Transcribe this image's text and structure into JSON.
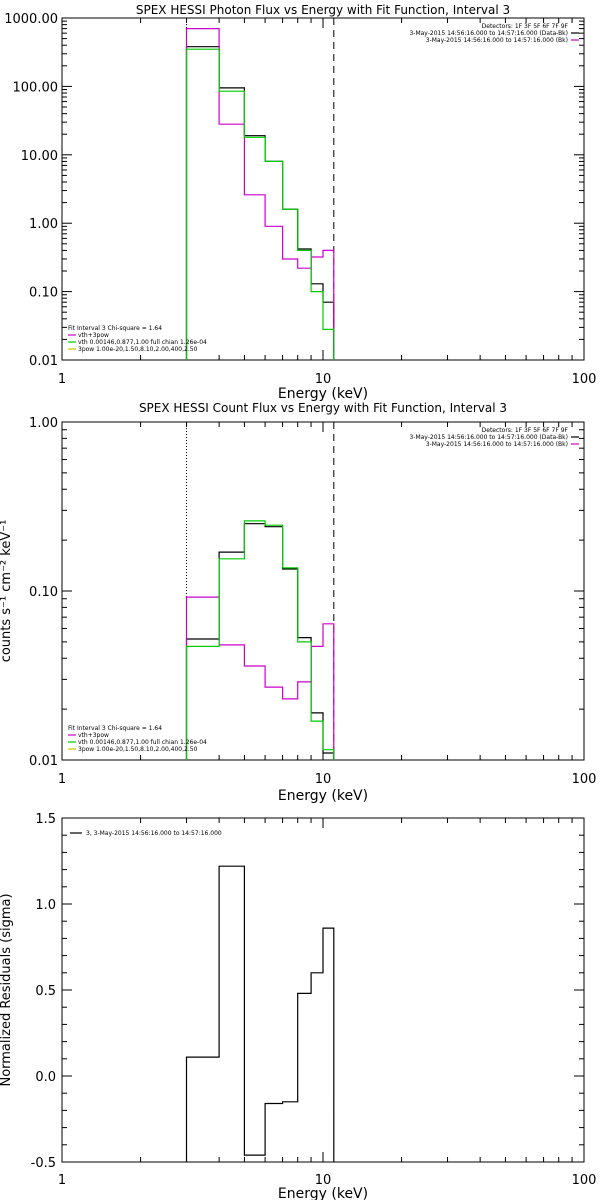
{
  "chart_data": [
    {
      "type": "line",
      "title": "SPEX HESSI Photon Flux vs Energy with Fit Function, Interval 3",
      "xlabel": "Energy (keV)",
      "ylabel": "",
      "xscale": "log",
      "yscale": "log",
      "xlim": [
        1,
        100
      ],
      "ylim": [
        0.01,
        1000
      ],
      "xticks": [
        "1",
        "10",
        "100"
      ],
      "yticks": [
        "1000.00",
        "100.00",
        "10.00",
        "1.00",
        "0.10",
        "0.01"
      ],
      "legend_top_right": [
        {
          "text": "Detectors: 1F 3F 5F 6F 7F 9F",
          "color": ""
        },
        {
          "text": "3-May-2015 14:56:16.000 to 14:57:16.000 (Data-Bk)",
          "color": "#000000"
        },
        {
          "text": "3-May-2015 14:56:16.000 to 14:57:16.000 (Bk)",
          "color": "#cc00cc"
        }
      ],
      "legend_bottom_left": [
        {
          "text": "Fit Interval 3   Chi-square = 1.64",
          "color": ""
        },
        {
          "text": "vth+3pow",
          "color": "#cc00cc"
        },
        {
          "text": "vth 0.00146,0.877,1.00  full chian 1.26e-04",
          "color": "#00cc00"
        },
        {
          "text": "3pow 1.00e-20,1.50,8.10,2.00,400,2.50",
          "color": "#cccc00"
        }
      ],
      "vlines": [
        {
          "x": 3,
          "style": "dotted"
        },
        {
          "x": 11,
          "style": "dashed"
        }
      ],
      "bin_edges": [
        3,
        4,
        5,
        6,
        7,
        8,
        9,
        10,
        11
      ],
      "series": [
        {
          "label": "Data-Bk",
          "color": "#000000",
          "values": [
            380,
            95,
            19,
            8,
            1.6,
            0.42,
            0.13,
            0.07
          ]
        },
        {
          "label": "Bk",
          "color": "#cc00cc",
          "values": [
            700,
            28,
            2.6,
            0.9,
            0.3,
            0.22,
            0.32,
            0.4
          ]
        },
        {
          "label": "Fit",
          "color": "#00cc00",
          "values": [
            350,
            85,
            18,
            8,
            1.6,
            0.4,
            0.1,
            0.028
          ]
        }
      ]
    },
    {
      "type": "line",
      "title": "SPEX HESSI Count Flux vs Energy with Fit Function, Interval 3",
      "xlabel": "Energy (keV)",
      "ylabel": "counts s⁻¹ cm⁻² keV⁻¹",
      "xscale": "log",
      "yscale": "log",
      "xlim": [
        1,
        100
      ],
      "ylim": [
        0.01,
        1
      ],
      "xticks": [
        "1",
        "10",
        "100"
      ],
      "yticks": [
        "1.00",
        "0.10",
        "0.01"
      ],
      "legend_top_right": [
        {
          "text": "Detectors: 1F 3F 5F 6F 7F 9F",
          "color": ""
        },
        {
          "text": "3-May-2015 14:56:16.000 to 14:57:16.000 (Data-Bk)",
          "color": "#000000"
        },
        {
          "text": "3-May-2015 14:56:16.000 to 14:57:16.000 (Bk)",
          "color": "#cc00cc"
        }
      ],
      "legend_bottom_left": [
        {
          "text": "Fit Interval 3   Chi-square = 1.64",
          "color": ""
        },
        {
          "text": "vth+3pow",
          "color": "#cc00cc"
        },
        {
          "text": "vth 0.00146,0.877,1.00  full chian 1.26e-04",
          "color": "#00cc00"
        },
        {
          "text": "3pow 1.00e-20,1.50,8.10,2.00,400,2.50",
          "color": "#cccc00"
        }
      ],
      "vlines": [
        {
          "x": 3,
          "style": "dotted"
        },
        {
          "x": 11,
          "style": "dashed"
        }
      ],
      "bin_edges": [
        3,
        4,
        5,
        6,
        7,
        8,
        9,
        10,
        11
      ],
      "series": [
        {
          "label": "Data-Bk",
          "color": "#000000",
          "values": [
            0.052,
            0.17,
            0.25,
            0.24,
            0.135,
            0.053,
            0.019,
            0.011
          ]
        },
        {
          "label": "Bk",
          "color": "#cc00cc",
          "values": [
            0.092,
            0.048,
            0.036,
            0.027,
            0.023,
            0.029,
            0.047,
            0.064
          ]
        },
        {
          "label": "Fit",
          "color": "#00cc00",
          "values": [
            0.047,
            0.155,
            0.26,
            0.245,
            0.137,
            0.05,
            0.017,
            0.0115
          ]
        }
      ]
    },
    {
      "type": "line",
      "title": "",
      "xlabel": "Energy (keV)",
      "ylabel": "Normalized Residuals (sigma)",
      "xscale": "log",
      "yscale": "linear",
      "xlim": [
        1,
        100
      ],
      "ylim": [
        -0.5,
        1.5
      ],
      "xticks": [
        "1",
        "10",
        "100"
      ],
      "yticks": [
        "1.5",
        "1.0",
        "0.5",
        "0.0",
        "-0.5"
      ],
      "legend_top_left": [
        {
          "text": "3, 3-May-2015 14:56:16.000 to 14:57:16.000",
          "color": "#000000"
        }
      ],
      "legend_top_right": [],
      "legend_bottom_left": [],
      "vlines": [],
      "bin_edges": [
        3,
        4,
        5,
        6,
        7,
        8,
        9,
        10,
        11
      ],
      "series": [
        {
          "label": "Residuals",
          "color": "#000000",
          "values": [
            0.11,
            1.22,
            -0.46,
            -0.16,
            -0.15,
            0.48,
            0.6,
            0.86
          ]
        }
      ]
    }
  ]
}
